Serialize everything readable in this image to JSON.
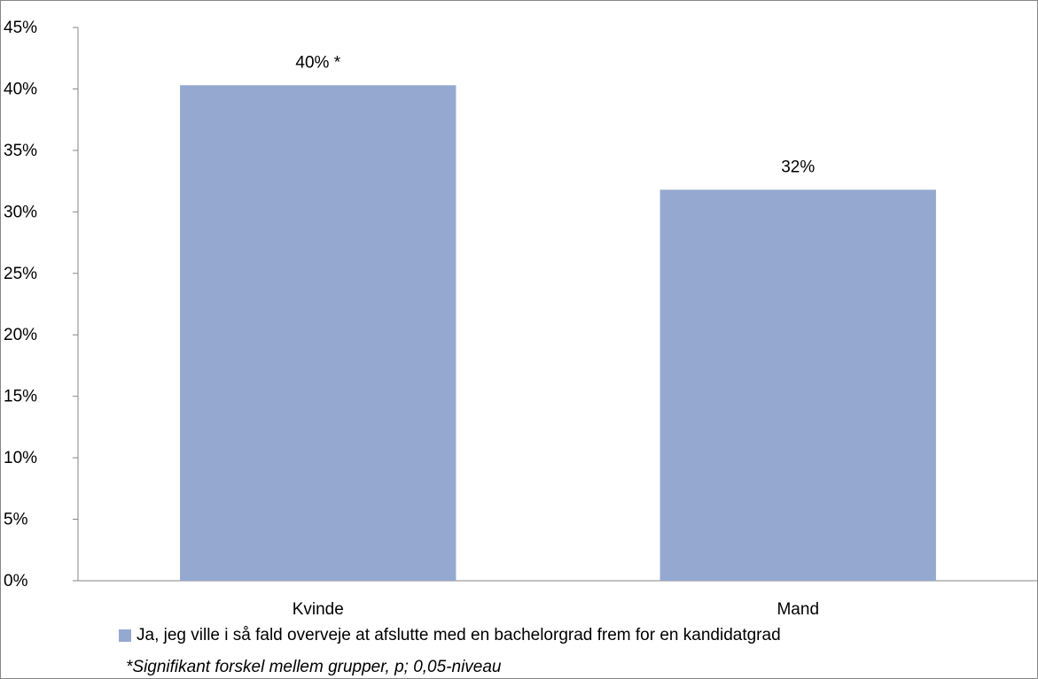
{
  "chart_data": {
    "type": "bar",
    "categories": [
      "Kvinde",
      "Mand"
    ],
    "series": [
      {
        "name": "Ja, jeg ville i så fald overveje at afslutte med en bachelorgrad frem for en kandidatgrad",
        "values": [
          40.3,
          31.8
        ],
        "data_labels": [
          "40% *",
          "32%"
        ],
        "color": "#95a9d0"
      }
    ],
    "ylim": [
      0,
      45
    ],
    "yticks": [
      0,
      5,
      10,
      15,
      20,
      25,
      30,
      35,
      40,
      45
    ],
    "ytick_labels": [
      "0%",
      "5%",
      "10%",
      "15%",
      "20%",
      "25%",
      "30%",
      "35%",
      "40%",
      "45%"
    ],
    "grid": false,
    "legend_position": "bottom",
    "footnote": "*Signifikant forskel mellem grupper, p; 0,05-niveau"
  },
  "colors": {
    "axis": "#868686",
    "bar": "#95a9d0"
  }
}
